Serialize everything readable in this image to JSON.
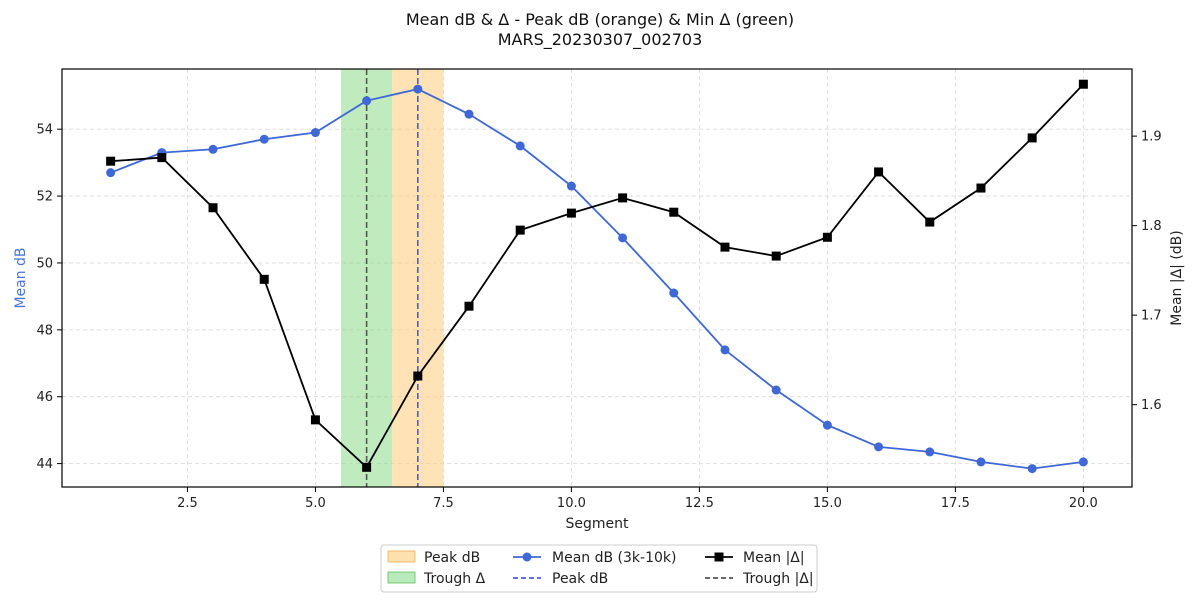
{
  "chart_data": {
    "type": "line",
    "title": "Mean dB & Δ - Peak dB (orange) & Min Δ (green)",
    "subtitle": "MARS_20230307_002703",
    "xlabel": "Segment",
    "ylabel_left": "Mean dB",
    "ylabel_right": "Mean |Δ| (dB)",
    "xlim": [
      0.05,
      20.95
    ],
    "ylim_left": [
      43.3,
      55.8
    ],
    "ylim_right": [
      1.508,
      1.975
    ],
    "x_ticks": [
      2.5,
      5.0,
      7.5,
      10.0,
      12.5,
      15.0,
      17.5,
      20.0
    ],
    "x_tick_labels": [
      "2.5",
      "5.0",
      "7.5",
      "10.0",
      "12.5",
      "15.0",
      "17.5",
      "20.0"
    ],
    "y_left_ticks": [
      44,
      46,
      48,
      50,
      52,
      54
    ],
    "y_left_tick_labels": [
      "44",
      "46",
      "48",
      "50",
      "52",
      "54"
    ],
    "y_right_ticks": [
      1.6,
      1.7,
      1.8,
      1.9
    ],
    "y_right_tick_labels": [
      "1.6",
      "1.7",
      "1.8",
      "1.9"
    ],
    "grid": true,
    "legend_position": "bottom-center",
    "colors": {
      "mean_db": "#3f67d6",
      "mean_delta": "#000000",
      "peak_band": "#ffc86e",
      "trough_band": "#7fd87f",
      "peak_line": "#4e5ad6",
      "trough_line": "#555555"
    },
    "x": [
      1,
      2,
      3,
      4,
      5,
      6,
      7,
      8,
      9,
      10,
      11,
      12,
      13,
      14,
      15,
      16,
      17,
      18,
      19,
      20
    ],
    "series": [
      {
        "name": "Mean dB (3k-10k)",
        "axis": "left",
        "marker": "circle",
        "values": [
          52.7,
          53.3,
          53.4,
          53.7,
          53.9,
          54.85,
          55.2,
          54.45,
          53.5,
          52.3,
          50.75,
          49.1,
          47.4,
          46.2,
          45.15,
          44.5,
          44.35,
          44.05,
          43.85,
          44.05
        ]
      },
      {
        "name": "Mean |Δ|",
        "axis": "right",
        "marker": "square",
        "values": [
          1.872,
          1.876,
          1.82,
          1.74,
          1.583,
          1.53,
          1.632,
          1.71,
          1.795,
          1.814,
          1.831,
          1.815,
          1.776,
          1.766,
          1.787,
          1.86,
          1.804,
          1.842,
          1.898,
          1.958
        ]
      }
    ],
    "bands": [
      {
        "name": "Peak dB",
        "from": 6.5,
        "to": 7.5
      },
      {
        "name": "Trough Δ",
        "from": 5.5,
        "to": 6.5
      }
    ],
    "vlines": [
      {
        "name": "Peak dB",
        "x": 7
      },
      {
        "name": "Trough |Δ|",
        "x": 6
      }
    ]
  },
  "legend": {
    "items": [
      "Peak dB",
      "Trough Δ",
      "Mean dB (3k-10k)",
      "Peak dB",
      "Mean |Δ|",
      "Trough |Δ|"
    ]
  }
}
